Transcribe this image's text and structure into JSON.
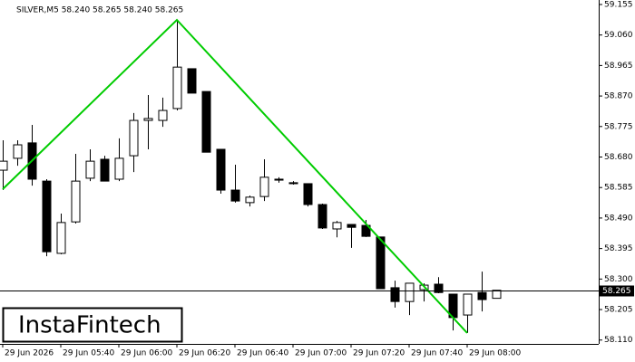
{
  "chart_data": {
    "type": "candlestick",
    "title": "SILVER,M5  58.240 58.265 58.240 58.265",
    "categories": [
      "29 Jun 2026",
      null,
      null,
      null,
      "29 Jun 05:40",
      null,
      null,
      null,
      "29 Jun 06:00",
      null,
      null,
      null,
      "29 Jun 06:20",
      null,
      null,
      null,
      "29 Jun 06:40",
      null,
      null,
      null,
      "29 Jun 07:00",
      null,
      null,
      null,
      "29 Jun 07:20",
      null,
      null,
      null,
      "29 Jun 07:40",
      null,
      null,
      null,
      "29 Jun 08:00",
      null,
      null
    ],
    "open": [
      58.639,
      58.676,
      58.724,
      58.605,
      58.38,
      58.478,
      58.614,
      58.673,
      58.611,
      58.684,
      58.794,
      58.794,
      58.831,
      58.955,
      58.884,
      58.704,
      58.577,
      58.538,
      58.557,
      58.611,
      58.6,
      58.597,
      58.532,
      58.456,
      58.47,
      58.467,
      58.431,
      58.273,
      58.23,
      58.267,
      58.284,
      58.253,
      58.188,
      58.258,
      58.24
    ],
    "high": [
      58.732,
      58.732,
      58.78,
      58.611,
      58.504,
      58.69,
      58.704,
      58.684,
      58.738,
      58.817,
      58.873,
      58.865,
      59.107,
      58.955,
      58.884,
      58.704,
      58.656,
      58.56,
      58.673,
      58.617,
      58.605,
      58.597,
      58.535,
      58.481,
      58.47,
      58.484,
      58.431,
      58.295,
      58.287,
      58.287,
      58.306,
      58.253,
      58.253,
      58.323,
      58.265
    ],
    "low": [
      58.577,
      58.653,
      58.591,
      58.371,
      58.377,
      58.473,
      58.605,
      58.605,
      58.605,
      58.633,
      58.704,
      58.774,
      58.825,
      58.879,
      58.695,
      58.566,
      58.538,
      58.526,
      58.543,
      58.6,
      58.594,
      58.526,
      58.456,
      58.43,
      58.397,
      58.431,
      58.27,
      58.211,
      58.188,
      58.23,
      58.256,
      58.14,
      58.132,
      58.199,
      58.24
    ],
    "close": [
      58.667,
      58.718,
      58.611,
      58.385,
      58.476,
      58.605,
      58.667,
      58.605,
      58.676,
      58.794,
      58.8,
      58.825,
      58.96,
      58.879,
      58.695,
      58.577,
      58.543,
      58.555,
      58.617,
      58.608,
      58.597,
      58.532,
      58.459,
      58.476,
      58.461,
      58.433,
      58.27,
      58.23,
      58.287,
      58.281,
      58.258,
      58.18,
      58.253,
      58.236,
      58.265
    ],
    "up_color": "#ffffff",
    "down_color": "#000000",
    "ylim": [
      58.098,
      59.169
    ],
    "yticks": [
      59.155,
      {
        "value": 59.06,
        "label": "59.060"
      },
      58.965,
      {
        "value": 58.87,
        "label": "58.870"
      },
      58.775,
      {
        "value": 58.68,
        "label": "58.680"
      },
      58.585,
      {
        "value": 58.49,
        "label": "58.490"
      },
      58.395,
      {
        "value": 58.3,
        "label": "58.300"
      },
      58.205,
      {
        "value": 58.11,
        "label": "58.110"
      }
    ],
    "last_price": 58.265,
    "pattern_line": {
      "x": [
        0,
        12,
        32
      ],
      "y": [
        58.58,
        59.107,
        58.132
      ],
      "color": "#00cc00"
    }
  },
  "watermark": "InstaFintech"
}
